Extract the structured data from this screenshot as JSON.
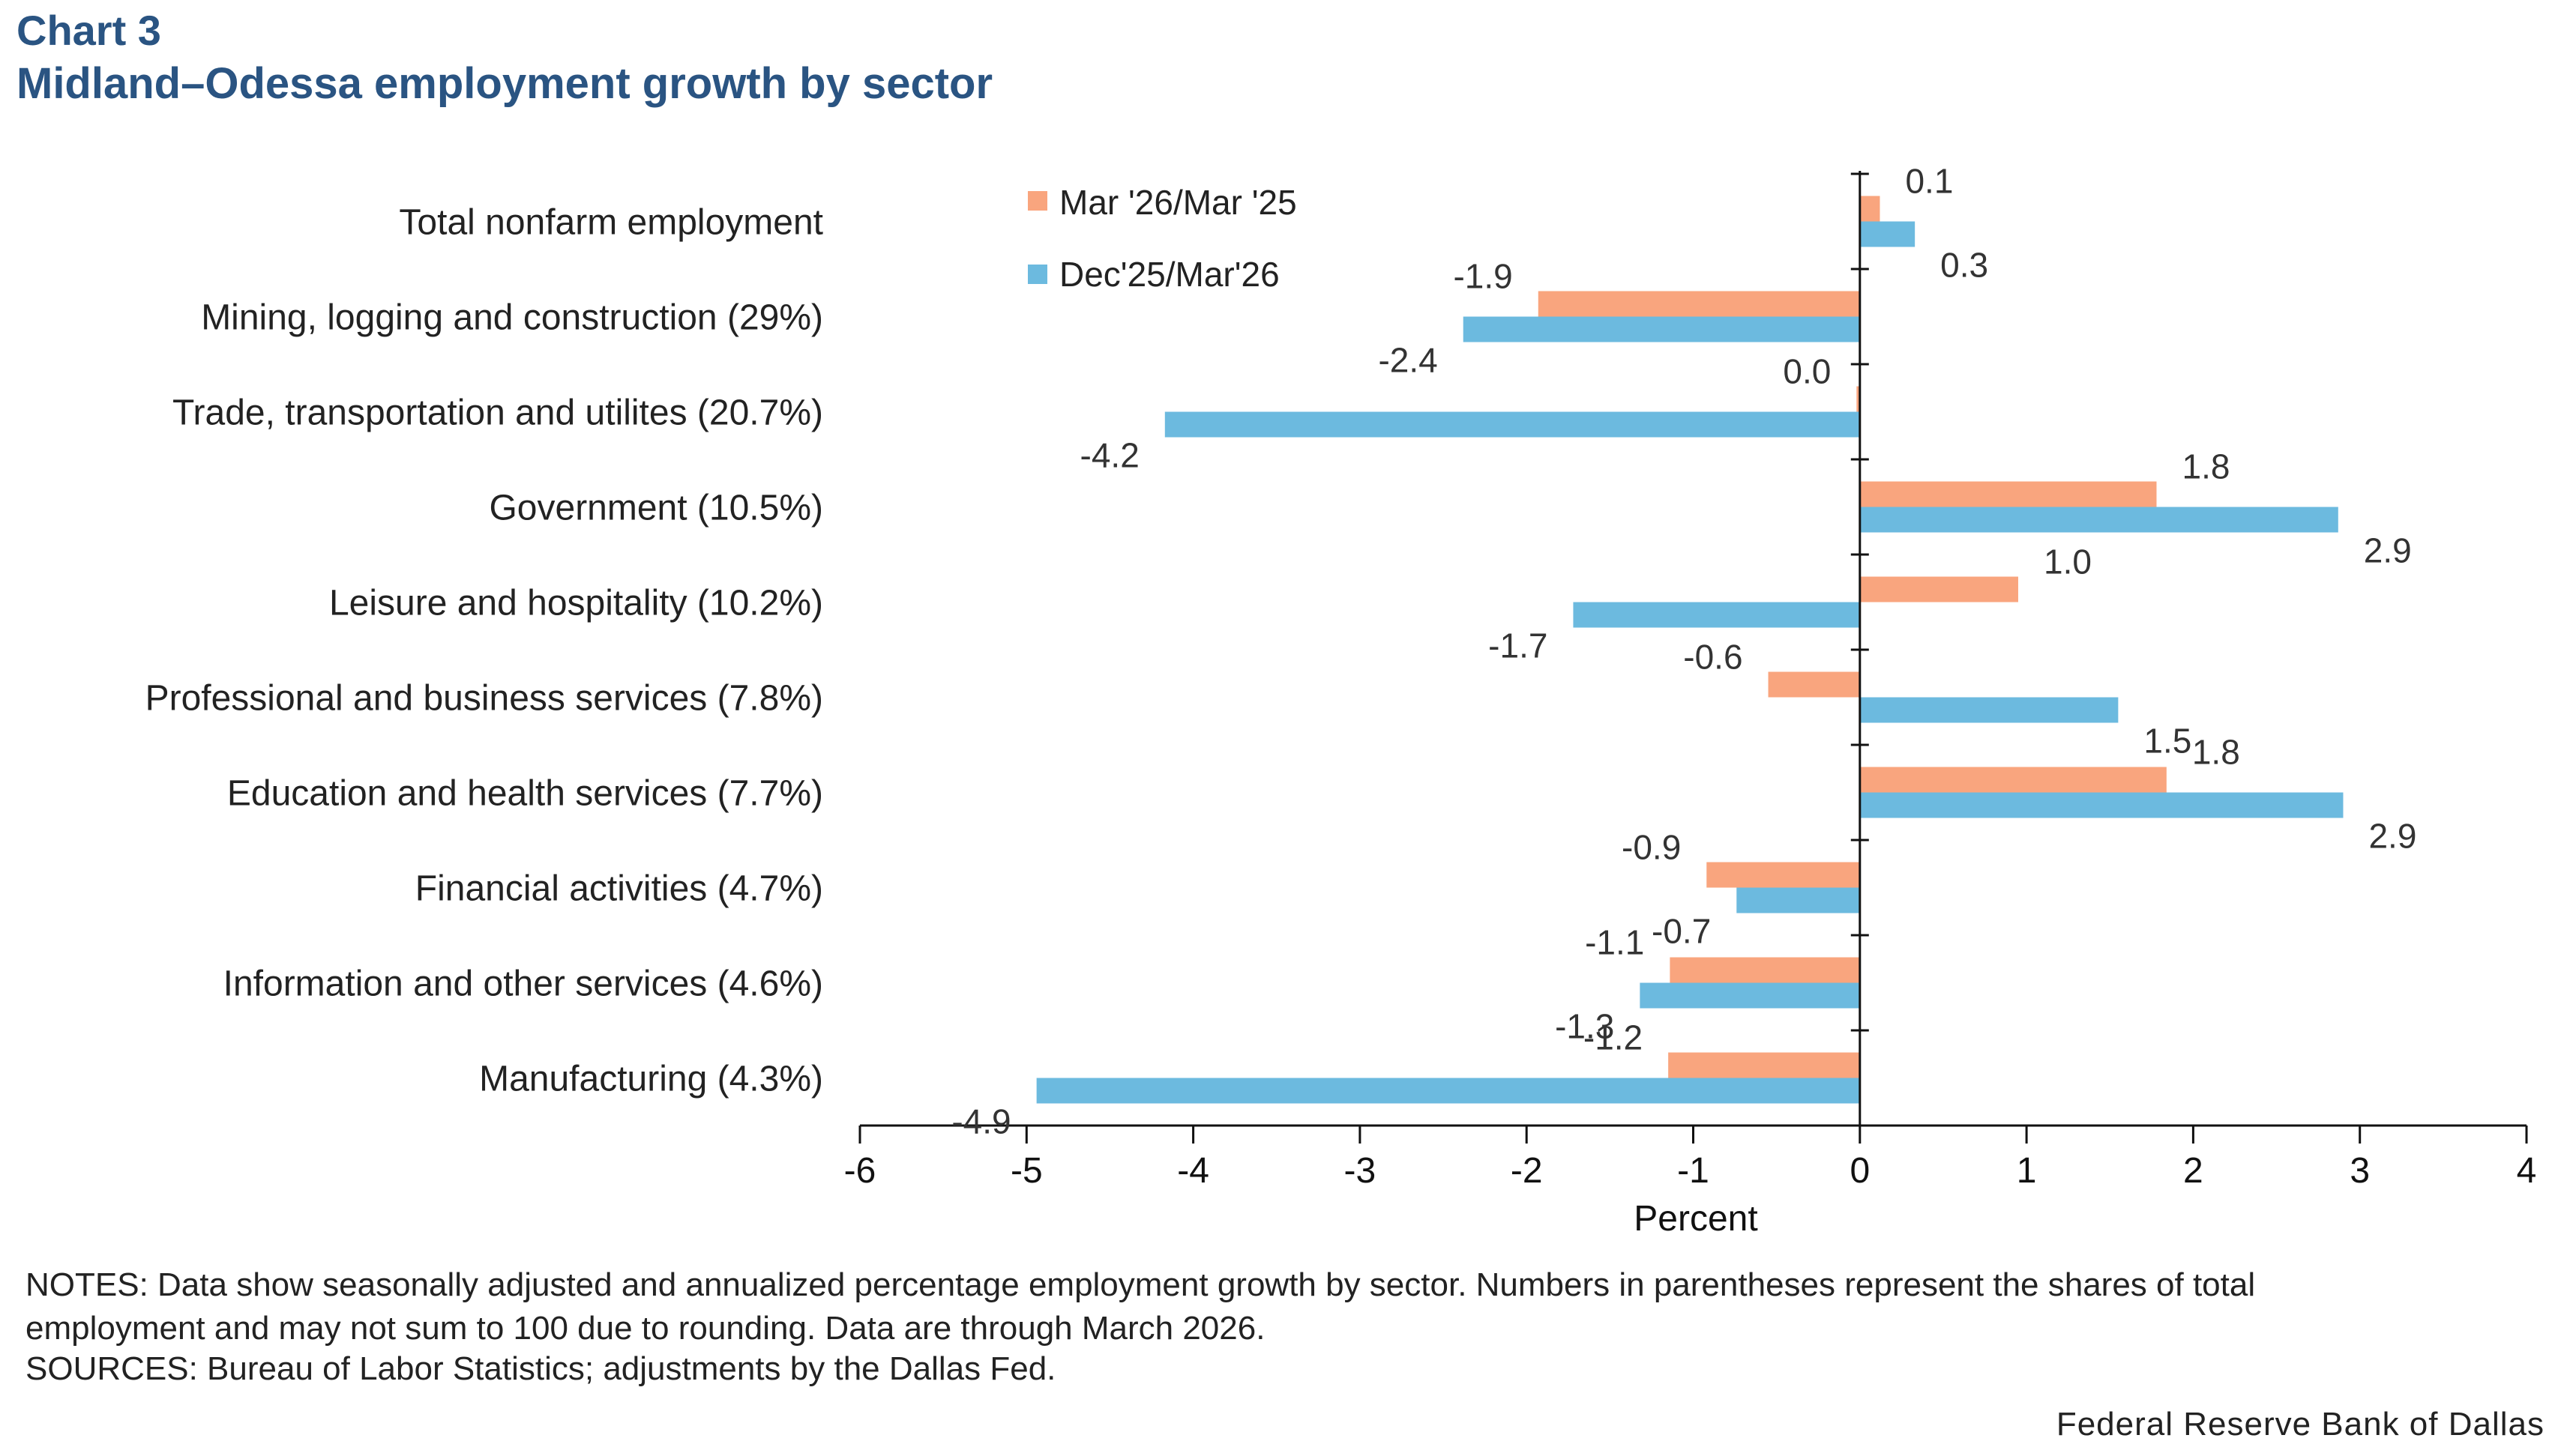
{
  "header": {
    "chart_number": "Chart 3",
    "title": "Midland–Odessa employment growth by sector"
  },
  "chart_data": {
    "type": "bar",
    "orientation": "horizontal",
    "categories": [
      "Total nonfarm employment",
      "Mining, logging and construction (29%)",
      "Trade, transportation and utilites (20.7%)",
      "Government (10.5%)",
      "Leisure and hospitality (10.2%)",
      "Professional and business services (7.8%)",
      "Education and health services (7.7%)",
      "Financial activities (4.7%)",
      "Information and other services (4.6%)",
      "Manufacturing (4.3%)"
    ],
    "series": [
      {
        "name": "Mar '26/Mar '25",
        "color": "#f9a57e",
        "values": [
          0.12,
          -1.93,
          -0.02,
          1.78,
          0.95,
          -0.55,
          1.84,
          -0.92,
          -1.14,
          -1.15
        ],
        "labels": [
          "0.1",
          "-1.9",
          "0.0",
          "1.8",
          "1.0",
          "-0.6",
          "1.8",
          "-0.9",
          "-1.1",
          "-1.2"
        ]
      },
      {
        "name": "Dec'25/Mar'26",
        "color": "#6cbadf",
        "values": [
          0.33,
          -2.38,
          -4.17,
          2.87,
          -1.72,
          1.55,
          2.9,
          -0.74,
          -1.32,
          -4.94
        ],
        "labels": [
          "0.3",
          "-2.4",
          "-4.2",
          "2.9",
          "-1.7",
          "1.5",
          "2.9",
          "-0.7",
          "-1.3",
          "-4.9"
        ]
      }
    ],
    "xlabel": "Percent",
    "xlim": [
      -6,
      4
    ],
    "x_ticks": [
      "-6",
      "-5",
      "-4",
      "-3",
      "-2",
      "-1",
      "0",
      "1",
      "2",
      "3",
      "4"
    ],
    "grid": false,
    "legend_position": "top-center"
  },
  "notes": {
    "line1": "NOTES: Data show seasonally adjusted and annualized percentage employment growth by sector. Numbers in parentheses represent the shares of total",
    "line2": "employment and may not sum to 100 due to rounding. Data are through March 2026.",
    "sources": "SOURCES: Bureau of Labor Statistics; adjustments by the Dallas Fed."
  },
  "credit": "Federal Reserve Bank of Dallas"
}
